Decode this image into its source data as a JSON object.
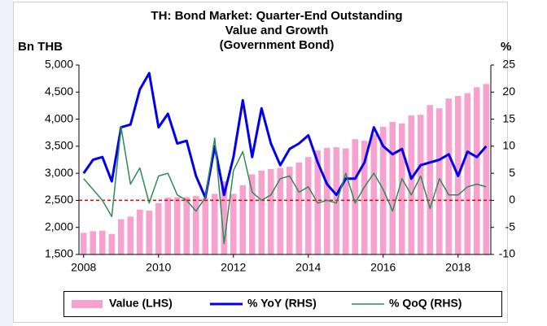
{
  "chart_data": {
    "type": "bar_line_dual",
    "title": [
      "TH: Bond Market: Quarter-End Outstanding",
      "Value and Growth",
      "(Government Bond)"
    ],
    "ylabel": "Bn THB",
    "y2label": "%",
    "categories": [
      "2008",
      null,
      null,
      null,
      null,
      null,
      null,
      null,
      "2010",
      null,
      null,
      null,
      null,
      null,
      null,
      null,
      "2012",
      null,
      null,
      null,
      null,
      null,
      null,
      null,
      "2014",
      null,
      null,
      null,
      null,
      null,
      null,
      null,
      "2016",
      null,
      null,
      null,
      null,
      null,
      null,
      null,
      "2018",
      null,
      null,
      null
    ],
    "series": [
      {
        "name": "Value (LHS)",
        "type": "bar",
        "color": "#f7a1cf",
        "axis": "y",
        "values": [
          1900,
          1930,
          1940,
          1880,
          2150,
          2200,
          2330,
          2310,
          2450,
          2550,
          2560,
          2560,
          2580,
          2540,
          2620,
          2850,
          2620,
          2780,
          2980,
          3050,
          3080,
          3100,
          3120,
          3200,
          3300,
          3420,
          3470,
          3480,
          3460,
          3630,
          3600,
          3720,
          3860,
          3950,
          3920,
          4070,
          4080,
          4260,
          4200,
          4380,
          4430,
          4480,
          4590,
          4650
        ]
      },
      {
        "name": "% YoY (RHS)",
        "type": "line",
        "color": "#0000ee",
        "axis": "y2",
        "values": [
          5,
          7.5,
          8,
          3.5,
          13.5,
          14,
          20.5,
          23.5,
          13.5,
          16,
          10.5,
          11,
          4.5,
          0.5,
          10,
          1,
          8,
          18.5,
          8,
          17,
          10.5,
          6.5,
          9.5,
          10.5,
          12,
          7,
          3,
          1,
          4,
          4,
          7,
          13.5,
          10,
          8.5,
          9.5,
          4,
          6.5,
          7,
          7.5,
          8.5,
          4.5,
          9,
          8,
          10
        ]
      },
      {
        "name": "% QoQ (RHS)",
        "type": "line",
        "color": "#2e8b57",
        "axis": "y2",
        "values": [
          4,
          2,
          0,
          -3,
          13.5,
          3,
          6,
          -0.5,
          4.5,
          5,
          1,
          0,
          -2,
          0.5,
          11.5,
          -8,
          5.5,
          9,
          1.5,
          0,
          1,
          4,
          4.5,
          1.5,
          2.5,
          -0.5,
          0,
          -0.5,
          5,
          -0.5,
          2.5,
          5,
          2,
          -2,
          4,
          1,
          4.5,
          -1.5,
          4,
          1,
          1,
          2.5,
          3,
          2.5
        ]
      }
    ],
    "ylim": [
      1500,
      5000
    ],
    "yticks": [
      {
        "value": 1500,
        "label": "1,500"
      },
      {
        "value": 2000,
        "label": "2,000"
      },
      {
        "value": 2500,
        "label": "2,500"
      },
      {
        "value": 3000,
        "label": "3,000"
      },
      {
        "value": 3500,
        "label": "3,500"
      },
      {
        "value": 4000,
        "label": "4,000"
      },
      {
        "value": 4500,
        "label": "4,500"
      },
      {
        "value": 5000,
        "label": "5,000"
      }
    ],
    "y2lim": [
      -10,
      25
    ],
    "y2ticks": [
      -10,
      -5,
      0,
      5,
      10,
      15,
      20,
      25
    ],
    "zero_line_color": "#e00000",
    "legend": "bottom"
  }
}
